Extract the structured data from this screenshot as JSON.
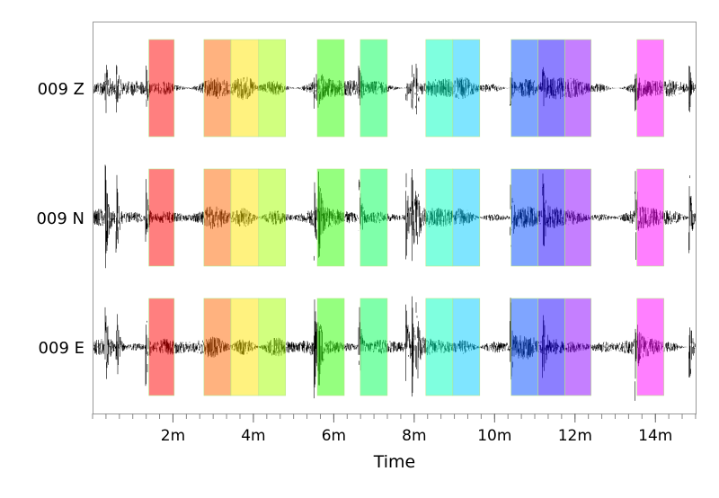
{
  "chart_data": {
    "type": "line",
    "title": "",
    "xlabel": "Time",
    "ylabel": "",
    "xlim": [
      0,
      15
    ],
    "x_unit": "minutes",
    "x_ticks": [
      {
        "value": 2,
        "label": "2m"
      },
      {
        "value": 4,
        "label": "4m"
      },
      {
        "value": 6,
        "label": "6m"
      },
      {
        "value": 8,
        "label": "8m"
      },
      {
        "value": 10,
        "label": "10m"
      },
      {
        "value": 12,
        "label": "12m"
      },
      {
        "value": 14,
        "label": "14m"
      }
    ],
    "minor_tick_step": 0.3333,
    "grid": false,
    "channels": [
      {
        "label": "009 Z"
      },
      {
        "label": "009 N"
      },
      {
        "label": "009 E"
      }
    ],
    "events_minutes": [
      0.33,
      0.6,
      1.33,
      5.52,
      5.62,
      6.63,
      7.8,
      7.95,
      8.05,
      10.4,
      11.2,
      13.5,
      14.85
    ],
    "windows": [
      {
        "start": 1.4,
        "end": 2.03,
        "color": "#ff0000"
      },
      {
        "start": 2.77,
        "end": 3.44,
        "color": "#ff6600"
      },
      {
        "start": 3.44,
        "end": 4.13,
        "color": "#ffe600"
      },
      {
        "start": 4.13,
        "end": 4.8,
        "color": "#a3ff00"
      },
      {
        "start": 5.59,
        "end": 6.26,
        "color": "#2bff00"
      },
      {
        "start": 6.66,
        "end": 7.33,
        "color": "#00ff55"
      },
      {
        "start": 8.29,
        "end": 8.96,
        "color": "#00ffbf"
      },
      {
        "start": 8.96,
        "end": 9.63,
        "color": "#00ccff"
      },
      {
        "start": 10.41,
        "end": 11.08,
        "color": "#004cff"
      },
      {
        "start": 11.08,
        "end": 11.75,
        "color": "#1a00ff"
      },
      {
        "start": 11.75,
        "end": 12.4,
        "color": "#8c00ff"
      },
      {
        "start": 13.54,
        "end": 14.21,
        "color": "#ff00ff"
      }
    ]
  }
}
